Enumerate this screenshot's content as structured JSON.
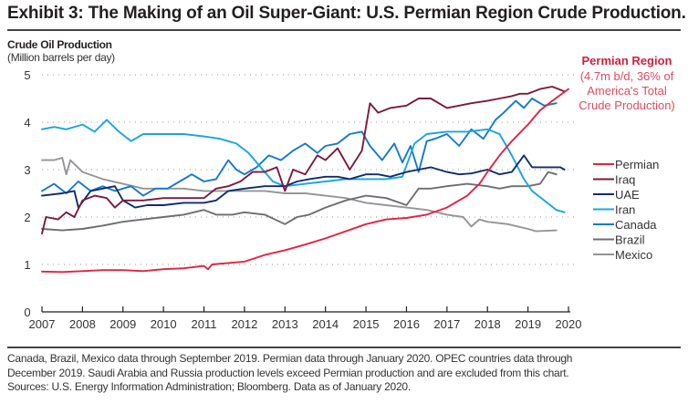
{
  "title": "Exhibit 3: The Making of an Oil Super-Giant: U.S. Permian Region Crude Production.",
  "notes": [
    "Canada, Brazil, Mexico data through September 2019. Permian data through January 2020. OPEC countries data through",
    "December 2019. Saudi Arabia and Russia production levels exceed Permian production and are excluded from this chart.",
    "Sources: U.S. Energy Information Administration; Bloomberg. Data as of January 2020."
  ],
  "chart_data": {
    "type": "line",
    "title": "Crude Oil Production",
    "ylabel": "(Million barrels per day)",
    "xlabel": "",
    "xlim": [
      2007,
      2020
    ],
    "ylim": [
      0,
      5
    ],
    "x_ticks": [
      2007,
      2008,
      2009,
      2010,
      2011,
      2012,
      2013,
      2014,
      2015,
      2016,
      2017,
      2018,
      2019,
      2020
    ],
    "y_ticks": [
      0,
      1,
      2,
      3,
      4,
      5
    ],
    "grid": "horizontal-dotted",
    "legend_position": "right",
    "annotation": {
      "title": "Permian Region",
      "lines": [
        "(4.7m b/d, 36% of",
        "America's Total",
        "Crude Production)"
      ]
    },
    "series": [
      {
        "name": "Permian",
        "color": "#e2233f",
        "x": [
          2007,
          2007.5,
          2008,
          2008.5,
          2009,
          2009.5,
          2010,
          2010.5,
          2011,
          2011.1,
          2011.2,
          2011.6,
          2012,
          2012.5,
          2013,
          2013.5,
          2014,
          2014.5,
          2015,
          2015.5,
          2016,
          2016.5,
          2017,
          2017.5,
          2017.8,
          2018,
          2018.3,
          2018.6,
          2019,
          2019.3,
          2019.6,
          2020
        ],
        "values": [
          0.85,
          0.84,
          0.86,
          0.88,
          0.88,
          0.86,
          0.9,
          0.92,
          0.97,
          0.9,
          1.0,
          1.03,
          1.06,
          1.2,
          1.3,
          1.42,
          1.55,
          1.7,
          1.85,
          1.95,
          1.98,
          2.05,
          2.2,
          2.45,
          2.7,
          2.95,
          3.3,
          3.6,
          3.95,
          4.25,
          4.45,
          4.7
        ]
      },
      {
        "name": "Iraq",
        "color": "#7a1a3f",
        "x": [
          2007,
          2007.1,
          2007.4,
          2007.6,
          2007.8,
          2008,
          2008.3,
          2008.6,
          2008.8,
          2009,
          2009.5,
          2010,
          2010.5,
          2011,
          2011.3,
          2011.6,
          2011.9,
          2012.2,
          2012.5,
          2012.8,
          2013,
          2013.2,
          2013.5,
          2013.8,
          2014,
          2014.3,
          2014.6,
          2014.9,
          2015.1,
          2015.3,
          2015.6,
          2016,
          2016.3,
          2016.6,
          2017,
          2017.3,
          2017.6,
          2018,
          2018.3,
          2018.6,
          2018.8,
          2019,
          2019.3,
          2019.6,
          2019.9
        ],
        "values": [
          1.65,
          2.0,
          1.95,
          2.1,
          2.0,
          2.35,
          2.45,
          2.4,
          2.2,
          2.35,
          2.35,
          2.4,
          2.4,
          2.4,
          2.6,
          2.65,
          2.75,
          2.95,
          2.95,
          3.05,
          2.55,
          3.0,
          2.9,
          3.3,
          3.2,
          3.45,
          3.0,
          3.4,
          4.4,
          4.2,
          4.3,
          4.35,
          4.5,
          4.5,
          4.3,
          4.35,
          4.4,
          4.45,
          4.5,
          4.55,
          4.6,
          4.6,
          4.7,
          4.75,
          4.65
        ]
      },
      {
        "name": "UAE",
        "color": "#0f2d6e",
        "x": [
          2007,
          2007.5,
          2007.8,
          2007.9,
          2008.2,
          2008.5,
          2008.8,
          2009,
          2009.3,
          2009.6,
          2010,
          2010.5,
          2011,
          2011.3,
          2011.6,
          2012,
          2012.5,
          2013,
          2013.3,
          2013.6,
          2014,
          2014.3,
          2014.6,
          2015,
          2015.3,
          2015.6,
          2016,
          2016.3,
          2016.6,
          2017,
          2017.3,
          2017.6,
          2018,
          2018.3,
          2018.6,
          2018.9,
          2019.1,
          2019.5,
          2019.8,
          2019.9
        ],
        "values": [
          2.45,
          2.5,
          2.55,
          2.2,
          2.55,
          2.6,
          2.65,
          2.35,
          2.2,
          2.25,
          2.25,
          2.3,
          2.3,
          2.35,
          2.55,
          2.6,
          2.65,
          2.65,
          2.75,
          2.8,
          2.85,
          2.85,
          2.8,
          2.9,
          2.9,
          2.85,
          2.95,
          3.0,
          3.05,
          2.95,
          2.9,
          2.92,
          3.0,
          2.9,
          2.95,
          3.3,
          3.05,
          3.05,
          3.05,
          3.0
        ]
      },
      {
        "name": "Iran",
        "color": "#1ba4e0",
        "x": [
          2007,
          2007.3,
          2007.6,
          2008,
          2008.3,
          2008.6,
          2008.9,
          2009.2,
          2009.5,
          2010,
          2010.5,
          2011,
          2011.4,
          2011.8,
          2012.1,
          2012.4,
          2012.7,
          2013,
          2013.5,
          2014,
          2014.5,
          2015,
          2015.5,
          2015.9,
          2016.2,
          2016.5,
          2017,
          2017.5,
          2018,
          2018.3,
          2018.6,
          2018.9,
          2019.1,
          2019.4,
          2019.7,
          2019.9
        ],
        "values": [
          3.85,
          3.9,
          3.85,
          3.95,
          3.8,
          4.05,
          3.8,
          3.6,
          3.75,
          3.75,
          3.75,
          3.7,
          3.65,
          3.55,
          3.35,
          3.05,
          2.75,
          2.65,
          2.7,
          2.75,
          2.8,
          2.8,
          2.8,
          2.85,
          3.55,
          3.75,
          3.8,
          3.8,
          3.85,
          3.75,
          3.3,
          2.8,
          2.55,
          2.35,
          2.15,
          2.1
        ]
      },
      {
        "name": "Canada",
        "color": "#1479c9",
        "x": [
          2007,
          2007.3,
          2007.6,
          2007.9,
          2008.2,
          2008.5,
          2008.8,
          2009.2,
          2009.5,
          2009.8,
          2010.1,
          2010.4,
          2010.7,
          2011,
          2011.3,
          2011.6,
          2011.8,
          2012,
          2012.3,
          2012.6,
          2012.9,
          2013.2,
          2013.5,
          2013.8,
          2014,
          2014.3,
          2014.6,
          2014.9,
          2015.1,
          2015.4,
          2015.7,
          2015.9,
          2016.1,
          2016.3,
          2016.5,
          2016.7,
          2017,
          2017.3,
          2017.6,
          2017.9,
          2018.2,
          2018.4,
          2018.7,
          2018.9,
          2019.1,
          2019.4,
          2019.7
        ],
        "values": [
          2.55,
          2.7,
          2.5,
          2.75,
          2.55,
          2.65,
          2.55,
          2.65,
          2.45,
          2.6,
          2.6,
          2.75,
          2.9,
          2.75,
          2.8,
          3.2,
          3.0,
          2.9,
          3.05,
          3.3,
          3.2,
          3.4,
          3.55,
          3.35,
          3.5,
          3.55,
          3.75,
          3.8,
          3.5,
          3.2,
          3.55,
          3.15,
          3.5,
          2.95,
          3.6,
          3.65,
          3.75,
          3.5,
          3.85,
          3.65,
          4.05,
          4.2,
          4.45,
          4.3,
          4.5,
          4.35,
          4.4
        ]
      },
      {
        "name": "Brazil",
        "color": "#6d6e71",
        "x": [
          2007,
          2007.5,
          2008,
          2008.5,
          2009,
          2009.5,
          2010,
          2010.5,
          2011,
          2011.3,
          2011.7,
          2012,
          2012.5,
          2013,
          2013.3,
          2013.6,
          2014,
          2014.5,
          2015,
          2015.5,
          2016,
          2016.3,
          2016.6,
          2017,
          2017.5,
          2018,
          2018.3,
          2018.6,
          2019,
          2019.3,
          2019.5,
          2019.7
        ],
        "values": [
          1.75,
          1.72,
          1.75,
          1.82,
          1.9,
          1.95,
          2.0,
          2.05,
          2.15,
          2.05,
          2.05,
          2.1,
          2.05,
          1.85,
          2.0,
          2.05,
          2.2,
          2.35,
          2.45,
          2.4,
          2.25,
          2.6,
          2.6,
          2.65,
          2.7,
          2.65,
          2.6,
          2.65,
          2.65,
          2.7,
          2.95,
          2.9
        ]
      },
      {
        "name": "Mexico",
        "color": "#939598",
        "x": [
          2007,
          2007.3,
          2007.5,
          2007.6,
          2007.7,
          2008,
          2008.5,
          2009,
          2009.5,
          2010,
          2010.5,
          2011,
          2011.5,
          2012,
          2012.5,
          2013,
          2013.5,
          2014,
          2014.5,
          2015,
          2015.5,
          2016,
          2016.5,
          2017,
          2017.4,
          2017.6,
          2017.8,
          2018,
          2018.5,
          2019,
          2019.2,
          2019.7
        ],
        "values": [
          3.2,
          3.2,
          3.25,
          2.9,
          3.2,
          2.95,
          2.8,
          2.7,
          2.6,
          2.6,
          2.6,
          2.55,
          2.55,
          2.55,
          2.55,
          2.5,
          2.5,
          2.45,
          2.4,
          2.3,
          2.25,
          2.2,
          2.15,
          2.05,
          2.0,
          1.8,
          1.95,
          1.9,
          1.85,
          1.75,
          1.7,
          1.72
        ]
      }
    ]
  }
}
